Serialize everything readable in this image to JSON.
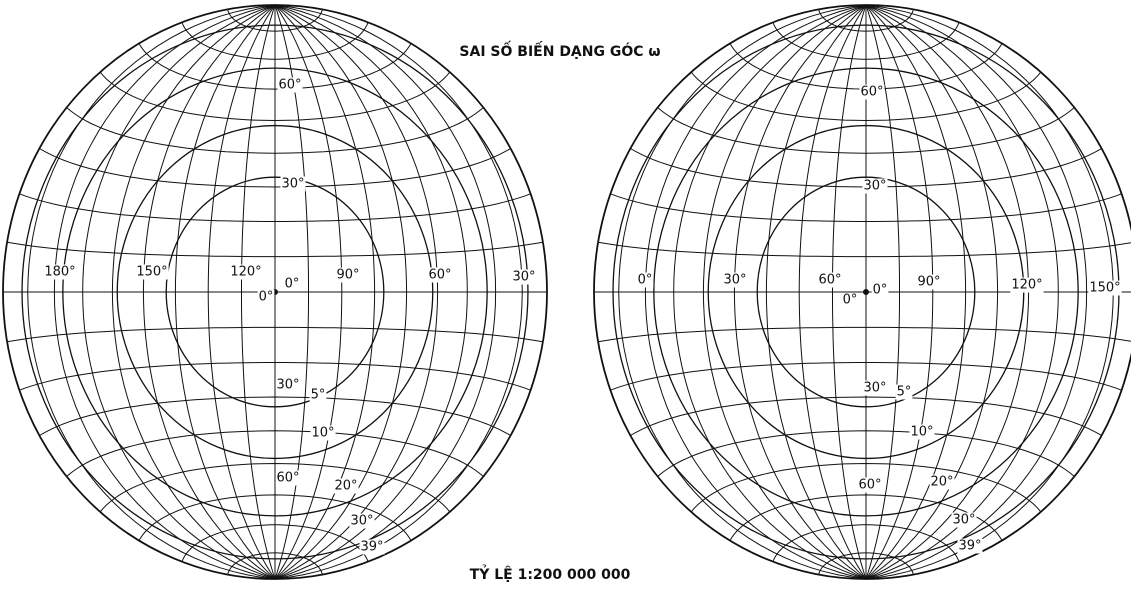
{
  "title": "SAI SỐ BIẾN DẠNG GÓC ω",
  "scale": "TỶ LỆ 1:200 000 000",
  "maps": [
    {
      "labels": [
        "60°",
        "30°",
        "180°",
        "150°",
        "120°",
        "0°",
        "0°",
        "90°",
        "60°",
        "30°",
        "30°",
        "5°",
        "10°",
        "60°",
        "20°",
        "30°",
        "39°"
      ]
    },
    {
      "labels": [
        "60°",
        "30°",
        "0°",
        "30°",
        "60°",
        "0°",
        "0°",
        "90°",
        "120°",
        "150°",
        "30°",
        "5°",
        "10°",
        "60°",
        "20°",
        "30°",
        "39°"
      ]
    }
  ]
}
